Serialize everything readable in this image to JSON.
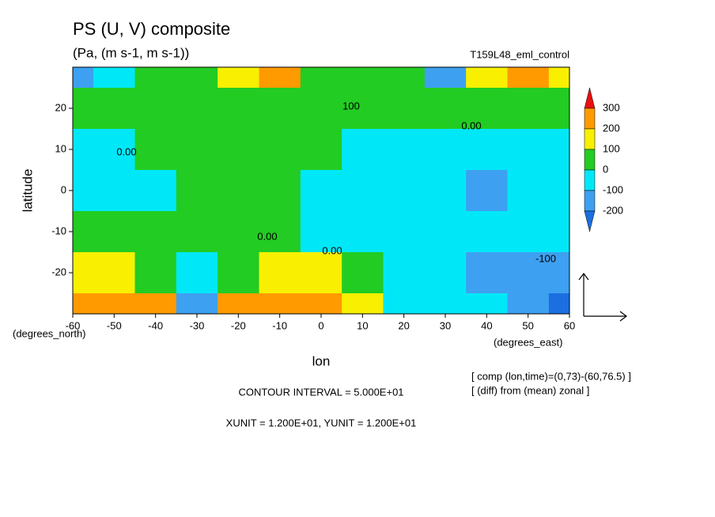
{
  "chart_data": {
    "type": "contour",
    "title": "PS (U, V) composite",
    "subtitle": "(Pa, (m s-1, m s-1))",
    "experiment": "T159L48_eml_control",
    "xlabel": "lon",
    "ylabel": "latitude",
    "yunit_label": "(degrees_north)",
    "xunit_label": "(degrees_east)",
    "xlim": [
      -60,
      60
    ],
    "ylim": [
      -30,
      30
    ],
    "xticks": [
      -60,
      -50,
      -40,
      -30,
      -20,
      -10,
      0,
      10,
      20,
      30,
      40,
      50,
      60
    ],
    "yticks": [
      -20,
      -10,
      0,
      10,
      20
    ],
    "x": [
      -60,
      -50,
      -40,
      -30,
      -20,
      -10,
      0,
      10,
      20,
      30,
      40,
      50,
      60
    ],
    "y": [
      30,
      20,
      10,
      0,
      -10,
      -20,
      -30
    ],
    "values": [
      [
        -150,
        -50,
        50,
        50,
        150,
        250,
        50,
        50,
        50,
        -150,
        150,
        250,
        150
      ],
      [
        50,
        50,
        50,
        50,
        50,
        50,
        50,
        50,
        50,
        50,
        50,
        50,
        50
      ],
      [
        -50,
        -50,
        50,
        50,
        50,
        50,
        50,
        -50,
        -50,
        -50,
        -50,
        -50,
        -50
      ],
      [
        -50,
        -50,
        -50,
        50,
        50,
        50,
        -50,
        -50,
        -50,
        -50,
        -150,
        -50,
        -50
      ],
      [
        50,
        50,
        50,
        50,
        50,
        50,
        -50,
        -50,
        -50,
        -50,
        -50,
        -50,
        -50
      ],
      [
        150,
        150,
        50,
        -50,
        50,
        150,
        150,
        50,
        -50,
        -50,
        -150,
        -150,
        -150
      ],
      [
        250,
        250,
        250,
        -150,
        250,
        250,
        250,
        150,
        -50,
        -50,
        -50,
        -150,
        -250
      ]
    ],
    "levels": [
      -200,
      -100,
      0,
      100,
      200,
      300
    ],
    "colors": [
      "#1b6fe0",
      "#3ea0f0",
      "#00e8f8",
      "#22cc22",
      "#f8f000",
      "#ff9a00",
      "#e81010"
    ],
    "contour_labels": [
      "0.00",
      "0.00",
      "0.00",
      "0.00",
      "100",
      "-100"
    ],
    "notes": [
      "[ comp (lon,time)=(0,73)-(60,76.5) ]",
      "[ (diff) from (mean) zonal ]"
    ],
    "contour_interval": "CONTOUR INTERVAL = 5.000E+01",
    "vector_units": "XUNIT = 1.200E+01, YUNIT = 1.200E+01"
  }
}
